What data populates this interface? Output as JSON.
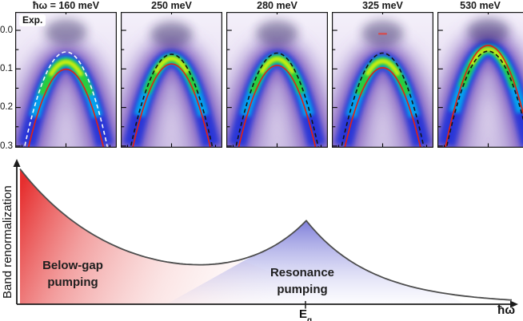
{
  "spectra": {
    "exp_label": "Exp.",
    "energy_axis_ticks": [
      "0.0",
      "0.1",
      "0.2",
      "0.3"
    ],
    "solid_curve_color": "#e02114",
    "colormap": [
      "#f2eef8",
      "#8a68c6",
      "#2134d8",
      "#00adf0",
      "#2ad32a",
      "#d8ee12"
    ],
    "panels": [
      {
        "title": "ħω = 160 meV",
        "dashed_color": "#f8f8f8",
        "dashed_apex_eV": 0.056,
        "solid_apex_eV": 0.101,
        "band_apex_eV": 0.082,
        "has_exp_label": true
      },
      {
        "title": "250 meV",
        "dashed_color": "#151515",
        "dashed_apex_eV": 0.062,
        "solid_apex_eV": 0.087,
        "band_apex_eV": 0.073
      },
      {
        "title": "280 meV",
        "dashed_color": "#151515",
        "dashed_apex_eV": 0.059,
        "solid_apex_eV": 0.091,
        "band_apex_eV": 0.074
      },
      {
        "title": "325 meV",
        "dashed_color": "#151515",
        "dashed_apex_eV": 0.059,
        "solid_apex_eV": 0.097,
        "band_apex_eV": 0.08,
        "marker_eV": 0.009,
        "marker_color": "#d94848"
      },
      {
        "title": "530 meV",
        "dashed_color": "#151515",
        "dashed_apex_eV": 0.054,
        "solid_apex_eV": 0.039,
        "band_apex_eV": 0.049
      }
    ]
  },
  "schematic": {
    "ylabel": "Band renormalization",
    "xlabel": "ħω",
    "x_tick_label": "E",
    "x_tick_sub": "g",
    "below_gap_label": {
      "line1": "Below-gap",
      "line2": "pumping"
    },
    "resonance_label": {
      "line1": "Resonance",
      "line2": "pumping"
    },
    "red_region_color": "#e52828",
    "blue_region_color": "#7373d6",
    "curve_color": "#4d4d4d"
  },
  "chart_data": {
    "type": "line",
    "title": "",
    "xlabel": "ħω",
    "ylabel": "Band renormalization",
    "x_tick_labels": [
      "E"
    ],
    "axes_note": "schematic, arbitrary units; x and y normalized 0-1",
    "series": [
      {
        "name": "band renormalization vs pump photon energy",
        "x_norm": [
          0.0,
          0.06,
          0.12,
          0.2,
          0.28,
          0.37,
          0.45,
          0.51,
          0.58,
          0.64,
          0.72,
          0.82,
          0.93,
          1.0
        ],
        "y_norm": [
          1.0,
          0.77,
          0.58,
          0.42,
          0.32,
          0.29,
          0.33,
          0.42,
          0.62,
          0.4,
          0.22,
          0.11,
          0.05,
          0.04
        ],
        "peak_x_label": "E",
        "features": [
          "divergence toward low ħω (below-gap pumping)",
          "cusp-shaped resonance peak at ħω = E",
          "decay above resonance"
        ]
      }
    ],
    "regions": [
      {
        "label": "Below-gap pumping",
        "color": "#e52828",
        "x_norm_range": [
          0.0,
          0.45
        ]
      },
      {
        "label": "Resonance pumping",
        "color": "#7373d6",
        "x_norm_range": [
          0.3,
          0.88
        ]
      }
    ],
    "spectra_panels": [
      {
        "title": "ħω = 160 meV",
        "overlay_dashed_apex_eV": 0.056,
        "overlay_solid_apex_eV": 0.101
      },
      {
        "title": "250 meV",
        "overlay_dashed_apex_eV": 0.062,
        "overlay_solid_apex_eV": 0.087
      },
      {
        "title": "280 meV",
        "overlay_dashed_apex_eV": 0.059,
        "overlay_solid_apex_eV": 0.091
      },
      {
        "title": "325 meV",
        "overlay_dashed_apex_eV": 0.059,
        "overlay_solid_apex_eV": 0.097
      },
      {
        "title": "530 meV",
        "overlay_dashed_apex_eV": 0.054,
        "overlay_solid_apex_eV": 0.039
      }
    ],
    "energy_axis_ticks_eV": [
      0.0,
      0.1,
      0.2,
      0.3
    ]
  }
}
